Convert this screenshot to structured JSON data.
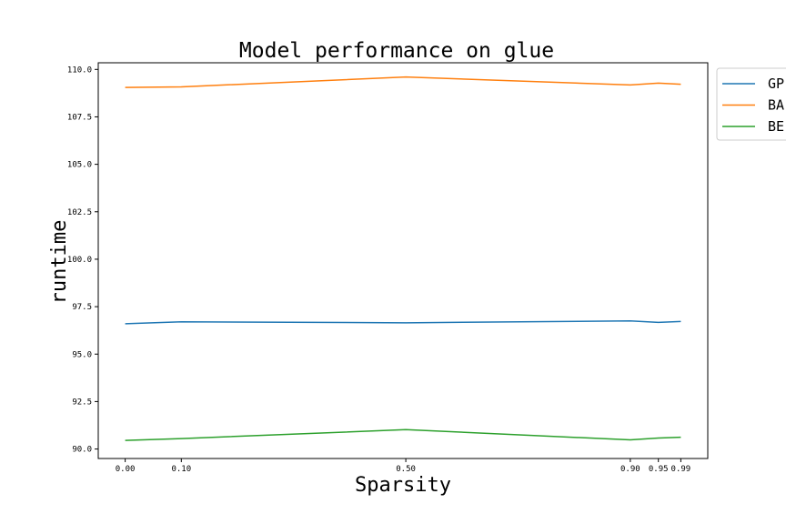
{
  "chart_data": {
    "type": "line",
    "title": "Model performance on glue",
    "xlabel": "Sparsity",
    "ylabel": "runtime",
    "x": [
      0.0,
      0.1,
      0.5,
      0.9,
      0.95,
      0.99
    ],
    "x_tick_labels": [
      "0.00",
      "0.10",
      "0.50",
      "0.90",
      "0.95",
      "0.99"
    ],
    "y_ticks": [
      90.0,
      92.5,
      95.0,
      97.5,
      100.0,
      102.5,
      105.0,
      107.5,
      110.0
    ],
    "y_tick_labels": [
      "90.0",
      "92.5",
      "95.0",
      "97.5",
      "100.0",
      "102.5",
      "105.0",
      "107.5",
      "110.0"
    ],
    "xlim": [
      -0.048,
      1.038
    ],
    "ylim": [
      89.5,
      110.35
    ],
    "grid": false,
    "legend_position": "outside-top-right",
    "series": [
      {
        "name": "GPT",
        "legend_visible": "GP",
        "color": "#1f77b4",
        "values": [
          96.6,
          96.7,
          96.65,
          96.75,
          96.67,
          96.72
        ]
      },
      {
        "name": "BART",
        "legend_visible": "BA",
        "color": "#ff7f0e",
        "values": [
          109.05,
          109.08,
          109.6,
          109.18,
          109.28,
          109.22
        ]
      },
      {
        "name": "BERT",
        "legend_visible": "BE",
        "color": "#2ca02c",
        "values": [
          90.45,
          90.55,
          91.02,
          90.48,
          90.58,
          90.62
        ]
      }
    ]
  }
}
